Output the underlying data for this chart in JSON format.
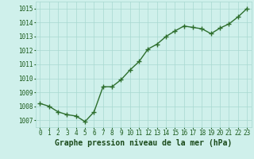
{
  "x": [
    0,
    1,
    2,
    3,
    4,
    5,
    6,
    7,
    8,
    9,
    10,
    11,
    12,
    13,
    14,
    15,
    16,
    17,
    18,
    19,
    20,
    21,
    22,
    23
  ],
  "y": [
    1008.2,
    1008.0,
    1007.6,
    1007.4,
    1007.3,
    1006.9,
    1007.6,
    1009.4,
    1009.4,
    1009.9,
    1010.6,
    1011.2,
    1012.1,
    1012.45,
    1013.0,
    1013.4,
    1013.75,
    1013.65,
    1013.55,
    1013.2,
    1013.6,
    1013.9,
    1014.4,
    1015.0
  ],
  "line_color": "#2d6e2d",
  "marker_color": "#2d6e2d",
  "bg_color": "#cff0eb",
  "grid_color": "#a8d8d0",
  "xlabel": "Graphe pression niveau de la mer (hPa)",
  "xlabel_color": "#1a4a1a",
  "xlabel_fontsize": 7,
  "ylabel_ticks": [
    1007,
    1008,
    1009,
    1010,
    1011,
    1012,
    1013,
    1014,
    1015
  ],
  "ylim": [
    1006.5,
    1015.5
  ],
  "xlim": [
    -0.5,
    23.5
  ],
  "xtick_labels": [
    "0",
    "1",
    "2",
    "3",
    "4",
    "5",
    "6",
    "7",
    "8",
    "9",
    "10",
    "11",
    "12",
    "13",
    "14",
    "15",
    "16",
    "17",
    "18",
    "19",
    "20",
    "21",
    "22",
    "23"
  ],
  "title_color": "#1a5a1a",
  "tick_fontsize": 5.5,
  "line_width": 1.0,
  "marker_size": 4
}
